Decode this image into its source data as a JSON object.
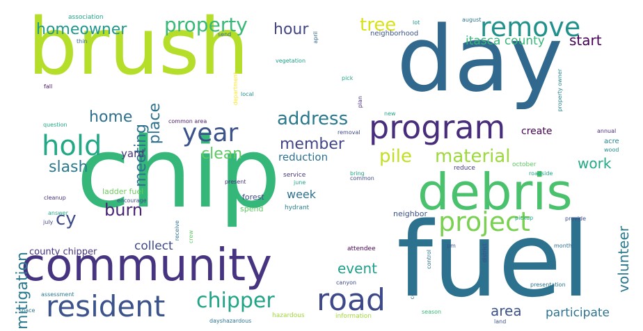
{
  "words": [
    {
      "text": "brush",
      "color": "#b5de2b",
      "vertical": false
    },
    {
      "text": "day",
      "color": "#31688e",
      "vertical": false
    },
    {
      "text": "chip",
      "color": "#35b779",
      "vertical": false
    },
    {
      "text": "fuel",
      "color": "#2c728e",
      "vertical": false
    },
    {
      "text": "community",
      "color": "#463480",
      "vertical": false
    },
    {
      "text": "debris",
      "color": "#4ac16d",
      "vertical": false
    },
    {
      "text": "program",
      "color": "#472d7b",
      "vertical": false
    },
    {
      "text": "resident",
      "color": "#3b528b",
      "vertical": false
    },
    {
      "text": "remove",
      "color": "#21918c",
      "vertical": false
    },
    {
      "text": "road",
      "color": "#3e4989",
      "vertical": false
    },
    {
      "text": "project",
      "color": "#7ad151",
      "vertical": false
    },
    {
      "text": "hold",
      "color": "#22a884",
      "vertical": false
    },
    {
      "text": "year",
      "color": "#3b528b",
      "vertical": false
    },
    {
      "text": "property",
      "color": "#38b977",
      "vertical": false
    },
    {
      "text": "homeowner",
      "color": "#1f988b",
      "vertical": false
    },
    {
      "text": "chipper",
      "color": "#20a486",
      "vertical": false
    },
    {
      "text": "address",
      "color": "#2a788e",
      "vertical": false
    },
    {
      "text": "material",
      "color": "#9bd93c",
      "vertical": false
    },
    {
      "text": "pile",
      "color": "#c2df23",
      "vertical": false
    },
    {
      "text": "member",
      "color": "#414487",
      "vertical": false
    },
    {
      "text": "tree",
      "color": "#d8e219",
      "vertical": false
    },
    {
      "text": "hour",
      "color": "#414487",
      "vertical": false
    },
    {
      "text": "mitigation",
      "color": "#2a788e",
      "vertical": true
    },
    {
      "text": "meeting",
      "color": "#2d708e",
      "vertical": true
    },
    {
      "text": "place",
      "color": "#2d708e",
      "vertical": true
    },
    {
      "text": "home",
      "color": "#2d708e",
      "vertical": false
    },
    {
      "text": "clean",
      "color": "#5ec962",
      "vertical": false
    },
    {
      "text": "burn",
      "color": "#482475",
      "vertical": false
    },
    {
      "text": "slash",
      "color": "#2a788e",
      "vertical": false
    },
    {
      "text": "work",
      "color": "#22a884",
      "vertical": false
    },
    {
      "text": "volunteer",
      "color": "#29798e",
      "vertical": true
    },
    {
      "text": "event",
      "color": "#1f9e89",
      "vertical": false
    },
    {
      "text": "area",
      "color": "#3b528b",
      "vertical": false
    },
    {
      "text": "participate",
      "color": "#2c728e",
      "vertical": false
    },
    {
      "text": "start",
      "color": "#440154",
      "vertical": false
    },
    {
      "text": "itasca county",
      "color": "#35b779",
      "vertical": false
    },
    {
      "text": "cy",
      "color": "#3e4989",
      "vertical": false
    },
    {
      "text": "collect",
      "color": "#3e4989",
      "vertical": false
    },
    {
      "text": "county chipper",
      "color": "#46337e",
      "vertical": false
    },
    {
      "text": "week",
      "color": "#2d708e",
      "vertical": false
    },
    {
      "text": "create",
      "color": "#440154",
      "vertical": false
    },
    {
      "text": "reduction",
      "color": "#2d708e",
      "vertical": false
    },
    {
      "text": "yard",
      "color": "#46337e",
      "vertical": false
    },
    {
      "text": "forest",
      "color": "#3e4989",
      "vertical": false
    },
    {
      "text": "ladder fuel",
      "color": "#6ccd5a",
      "vertical": false
    },
    {
      "text": "spend",
      "color": "#5ec962",
      "vertical": false
    },
    {
      "text": "hydrant",
      "color": "#277f8e",
      "vertical": false
    },
    {
      "text": "neighbor",
      "color": "#3b528b",
      "vertical": false
    },
    {
      "text": "neighborhood",
      "color": "#3b528b",
      "vertical": false
    },
    {
      "text": "association",
      "color": "#20a486",
      "vertical": false
    },
    {
      "text": "send",
      "color": "#31688e",
      "vertical": false
    },
    {
      "text": "thin",
      "color": "#31688e",
      "vertical": false
    },
    {
      "text": "lot",
      "color": "#21918c",
      "vertical": false
    },
    {
      "text": "august",
      "color": "#2c728e",
      "vertical": false
    },
    {
      "text": "vegetation",
      "color": "#1fa088",
      "vertical": false
    },
    {
      "text": "pick",
      "color": "#20a486",
      "vertical": false
    },
    {
      "text": "fall",
      "color": "#481467",
      "vertical": false
    },
    {
      "text": "local",
      "color": "#21918c",
      "vertical": false
    },
    {
      "text": "plan",
      "color": "#472d7b",
      "vertical": true
    },
    {
      "text": "department",
      "color": "#fde725",
      "vertical": true
    },
    {
      "text": "property owner",
      "color": "#25858e",
      "vertical": true
    },
    {
      "text": "acre",
      "color": "#26828e",
      "vertical": false
    },
    {
      "text": "annual",
      "color": "#482878",
      "vertical": false
    },
    {
      "text": "wood",
      "color": "#21918c",
      "vertical": false
    },
    {
      "text": "question",
      "color": "#22a884",
      "vertical": false
    },
    {
      "text": "common area",
      "color": "#481b6d",
      "vertical": false
    },
    {
      "text": "removal",
      "color": "#3e4989",
      "vertical": false
    },
    {
      "text": "new",
      "color": "#20a486",
      "vertical": false
    },
    {
      "text": "bring",
      "color": "#20a486",
      "vertical": false
    },
    {
      "text": "service",
      "color": "#46337e",
      "vertical": false
    },
    {
      "text": "present",
      "color": "#46337e",
      "vertical": false
    },
    {
      "text": "june",
      "color": "#20a486",
      "vertical": false
    },
    {
      "text": "common",
      "color": "#3e4989",
      "vertical": false
    },
    {
      "text": "reduce",
      "color": "#443a83",
      "vertical": false
    },
    {
      "text": "october",
      "color": "#5ec962",
      "vertical": false
    },
    {
      "text": "roadside",
      "color": "#20a486",
      "vertical": false
    },
    {
      "text": "cleanup",
      "color": "#46337e",
      "vertical": false
    },
    {
      "text": "encourage",
      "color": "#3e4989",
      "vertical": false
    },
    {
      "text": "answer",
      "color": "#22a884",
      "vertical": false
    },
    {
      "text": "july",
      "color": "#3e4989",
      "vertical": false
    },
    {
      "text": "receive",
      "color": "#2d708e",
      "vertical": true
    },
    {
      "text": "crew",
      "color": "#5ec962",
      "vertical": true
    },
    {
      "text": "attendee",
      "color": "#440154",
      "vertical": false
    },
    {
      "text": "pm",
      "color": "#3b528b",
      "vertical": false
    },
    {
      "text": "control",
      "color": "#2c728e",
      "vertical": true
    },
    {
      "text": "district",
      "color": "#3e4989",
      "vertical": true
    },
    {
      "text": "complete",
      "color": "#2c728e",
      "vertical": true
    },
    {
      "text": "month",
      "color": "#2d708e",
      "vertical": false
    },
    {
      "text": "provide",
      "color": "#3e4989",
      "vertical": false
    },
    {
      "text": "pickup",
      "color": "#22a884",
      "vertical": false
    },
    {
      "text": "canyon",
      "color": "#3e4989",
      "vertical": false
    },
    {
      "text": "presentation",
      "color": "#2c728e",
      "vertical": false
    },
    {
      "text": "assessment",
      "color": "#2a788e",
      "vertical": false
    },
    {
      "text": "space",
      "color": "#2c728e",
      "vertical": false
    },
    {
      "text": "dayshazardous",
      "color": "#2c728e",
      "vertical": false
    },
    {
      "text": "hazardous",
      "color": "#a0da39",
      "vertical": false
    },
    {
      "text": "information",
      "color": "#a0da39",
      "vertical": false
    },
    {
      "text": "land",
      "color": "#3b528b",
      "vertical": false
    },
    {
      "text": "season",
      "color": "#35b779",
      "vertical": false
    },
    {
      "text": "april",
      "color": "#31688e",
      "vertical": true
    }
  ]
}
